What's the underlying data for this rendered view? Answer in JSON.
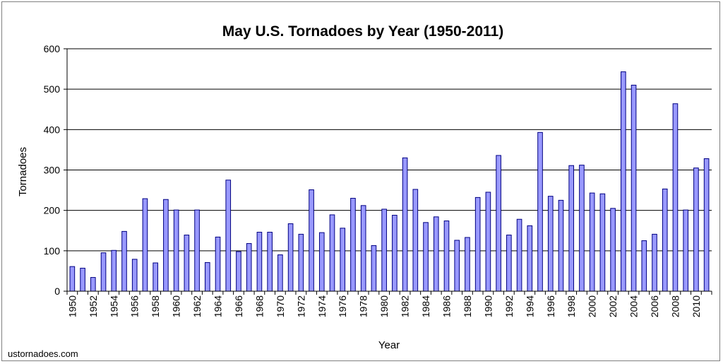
{
  "chart_data": {
    "type": "bar",
    "title": "May U.S. Tornadoes by Year (1950-2011)",
    "xlabel": "Year",
    "ylabel": "Tornadoes",
    "ylim": [
      0,
      600
    ],
    "yticks": [
      0,
      100,
      200,
      300,
      400,
      500,
      600
    ],
    "grid": true,
    "bar_color": "#9999ff",
    "bar_outline": "#000080",
    "categories": [
      "1950",
      "1951",
      "1952",
      "1953",
      "1954",
      "1955",
      "1956",
      "1957",
      "1958",
      "1959",
      "1960",
      "1961",
      "1962",
      "1963",
      "1964",
      "1965",
      "1966",
      "1967",
      "1968",
      "1969",
      "1970",
      "1971",
      "1972",
      "1973",
      "1974",
      "1975",
      "1976",
      "1977",
      "1978",
      "1979",
      "1980",
      "1981",
      "1982",
      "1983",
      "1984",
      "1985",
      "1986",
      "1987",
      "1988",
      "1989",
      "1990",
      "1991",
      "1992",
      "1993",
      "1994",
      "1995",
      "1996",
      "1997",
      "1998",
      "1999",
      "2000",
      "2001",
      "2002",
      "2003",
      "2004",
      "2005",
      "2006",
      "2007",
      "2008",
      "2009",
      "2010",
      "2011"
    ],
    "values": [
      61,
      57,
      34,
      95,
      101,
      148,
      79,
      229,
      70,
      227,
      201,
      139,
      201,
      71,
      134,
      275,
      98,
      118,
      146,
      146,
      90,
      167,
      141,
      251,
      145,
      189,
      156,
      230,
      212,
      113,
      203,
      188,
      330,
      252,
      170,
      184,
      174,
      126,
      133,
      232,
      245,
      336,
      139,
      178,
      162,
      393,
      235,
      225,
      311,
      312,
      243,
      241,
      205,
      543,
      510,
      125,
      141,
      253,
      464,
      201,
      305,
      328
    ],
    "source": "ustornadoes.com"
  }
}
